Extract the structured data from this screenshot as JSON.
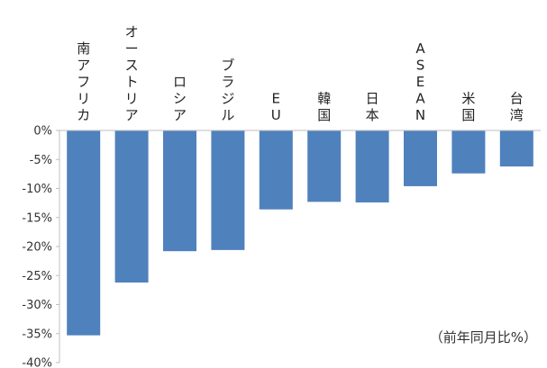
{
  "chart_data": {
    "type": "bar",
    "categories": [
      "南アフリカ",
      "オーストリア",
      "ロシア",
      "ブラジル",
      "EU",
      "韓国",
      "日本",
      "ASEAN",
      "米国",
      "台湾"
    ],
    "values": [
      -35.3,
      -26.2,
      -20.8,
      -20.6,
      -13.6,
      -12.3,
      -12.4,
      -9.6,
      -7.4,
      -6.2
    ],
    "y_ticks": [
      "0%",
      "-5%",
      "-10%",
      "-15%",
      "-20%",
      "-25%",
      "-30%",
      "-35%",
      "-40%"
    ],
    "ylim": [
      -40,
      0
    ],
    "unit_note": "（前年同月比%）",
    "bar_color": "#4f81bd",
    "grid": false,
    "legend": "none"
  }
}
